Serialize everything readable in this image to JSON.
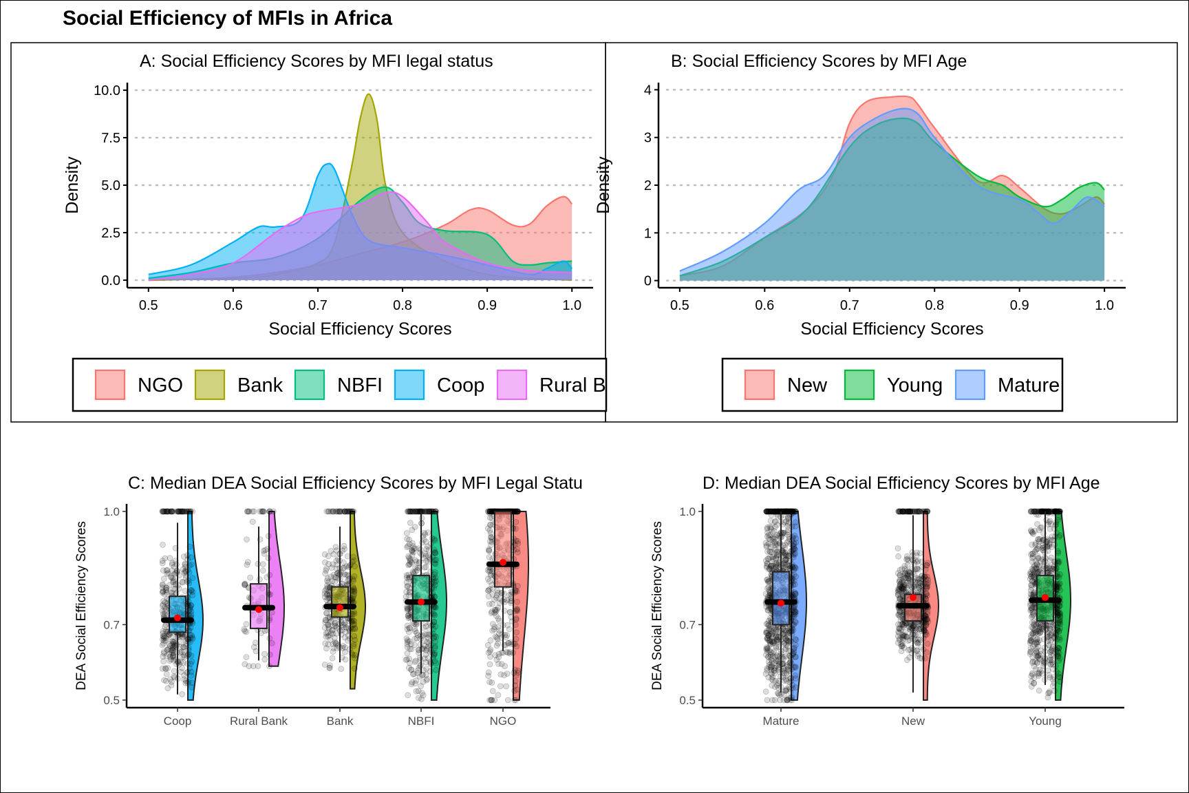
{
  "figure_title": "Social Efficiency of MFIs in Africa",
  "colors": {
    "NGO": "#F8766D",
    "Bank": "#A3A500",
    "NBFI": "#00BF7D",
    "Coop": "#00B0F6",
    "Rural Bank": "#E76BF3",
    "New": "#F8766D",
    "Young": "#00BA38",
    "Mature": "#619CFF",
    "mean_point": "#FF0000"
  },
  "chart_data": [
    {
      "id": "A",
      "type": "area",
      "title": "A: Social Efficiency Scores by MFI legal status",
      "xlabel": "Social Efficiency Scores",
      "ylabel": "Density",
      "xlim": [
        0.475,
        1.025
      ],
      "ylim": [
        -0.4,
        10.4
      ],
      "xticks": [
        0.5,
        0.6,
        0.7,
        0.8,
        0.9,
        1.0
      ],
      "xtick_labels": [
        "0.5",
        "0.6",
        "0.7",
        "0.8",
        "0.9",
        "1.0"
      ],
      "yticks": [
        0,
        2.5,
        5,
        7.5,
        10
      ],
      "ytick_labels": [
        "0.0",
        "2.5",
        "5.0",
        "7.5",
        "10.0"
      ],
      "grid": "horizontal dotted",
      "legend_position": "bottom",
      "legend": [
        "NGO",
        "Bank",
        "NBFI",
        "Coop",
        "Rural B"
      ],
      "series": [
        {
          "name": "NGO",
          "x": [
            0.5,
            0.55,
            0.6,
            0.65,
            0.7,
            0.75,
            0.8,
            0.85,
            0.88,
            0.9,
            0.93,
            0.95,
            0.97,
            0.99,
            1.0
          ],
          "y": [
            0.0,
            0.05,
            0.15,
            0.4,
            0.8,
            1.4,
            2.0,
            2.9,
            3.7,
            3.7,
            2.9,
            2.95,
            3.9,
            4.4,
            4.0
          ]
        },
        {
          "name": "Bank",
          "x": [
            0.5,
            0.6,
            0.65,
            0.7,
            0.72,
            0.74,
            0.75,
            0.76,
            0.77,
            0.78,
            0.8,
            0.85,
            0.9,
            0.95,
            1.0
          ],
          "y": [
            0.0,
            0.1,
            0.3,
            0.9,
            2.0,
            6.0,
            8.5,
            9.8,
            8.4,
            5.0,
            2.5,
            1.0,
            0.3,
            0.1,
            0.0
          ]
        },
        {
          "name": "NBFI",
          "x": [
            0.5,
            0.55,
            0.6,
            0.65,
            0.7,
            0.75,
            0.78,
            0.8,
            0.82,
            0.85,
            0.9,
            0.93,
            0.95,
            0.97,
            1.0
          ],
          "y": [
            0.1,
            0.4,
            0.9,
            1.2,
            2.2,
            4.2,
            4.9,
            4.1,
            3.0,
            2.6,
            2.4,
            1.0,
            0.8,
            0.9,
            1.0
          ]
        },
        {
          "name": "Coop",
          "x": [
            0.5,
            0.55,
            0.6,
            0.63,
            0.65,
            0.68,
            0.7,
            0.71,
            0.72,
            0.74,
            0.76,
            0.8,
            0.85,
            0.9,
            0.95,
            0.97,
            0.99,
            1.0
          ],
          "y": [
            0.3,
            0.8,
            2.0,
            2.8,
            2.8,
            3.2,
            5.5,
            6.1,
            5.8,
            3.5,
            2.1,
            1.7,
            1.3,
            0.8,
            0.3,
            0.6,
            1.0,
            0.6
          ]
        },
        {
          "name": "Rural Bank",
          "x": [
            0.5,
            0.55,
            0.6,
            0.65,
            0.68,
            0.7,
            0.75,
            0.78,
            0.8,
            0.83,
            0.85,
            0.9,
            0.95,
            1.0
          ],
          "y": [
            0.0,
            0.3,
            0.9,
            2.5,
            3.3,
            3.6,
            4.0,
            4.6,
            4.4,
            3.0,
            2.0,
            0.9,
            0.5,
            0.4
          ]
        }
      ]
    },
    {
      "id": "B",
      "type": "area",
      "title": "B: Social Efficiency Scores by MFI Age",
      "xlabel": "Social Efficiency Scores",
      "ylabel": "Density",
      "xlim": [
        0.475,
        1.025
      ],
      "ylim": [
        -0.15,
        4.15
      ],
      "xticks": [
        0.5,
        0.6,
        0.7,
        0.8,
        0.9,
        1.0
      ],
      "xtick_labels": [
        "0.5",
        "0.6",
        "0.7",
        "0.8",
        "0.9",
        "1.0"
      ],
      "yticks": [
        0,
        1,
        2,
        3,
        4
      ],
      "ytick_labels": [
        "0",
        "1",
        "2",
        "3",
        "4"
      ],
      "grid": "horizontal dotted",
      "legend_position": "bottom",
      "legend": [
        "New",
        "Young",
        "Mature"
      ],
      "series": [
        {
          "name": "New",
          "x": [
            0.5,
            0.55,
            0.6,
            0.65,
            0.68,
            0.7,
            0.72,
            0.75,
            0.77,
            0.78,
            0.8,
            0.85,
            0.88,
            0.9,
            0.93,
            0.95,
            0.97,
            0.99,
            1.0
          ],
          "y": [
            0.1,
            0.3,
            0.9,
            1.5,
            2.2,
            3.3,
            3.75,
            3.85,
            3.85,
            3.7,
            3.2,
            2.1,
            2.2,
            1.95,
            1.5,
            1.4,
            1.55,
            1.75,
            1.6
          ]
        },
        {
          "name": "Young",
          "x": [
            0.5,
            0.55,
            0.6,
            0.65,
            0.7,
            0.73,
            0.76,
            0.78,
            0.8,
            0.85,
            0.88,
            0.9,
            0.93,
            0.95,
            0.97,
            0.99,
            1.0
          ],
          "y": [
            0.1,
            0.4,
            0.9,
            1.5,
            2.8,
            3.25,
            3.4,
            3.3,
            2.9,
            2.2,
            2.0,
            1.75,
            1.55,
            1.7,
            1.95,
            2.05,
            1.9
          ]
        },
        {
          "name": "Mature",
          "x": [
            0.5,
            0.55,
            0.6,
            0.64,
            0.67,
            0.7,
            0.73,
            0.76,
            0.78,
            0.8,
            0.85,
            0.9,
            0.92,
            0.94,
            0.96,
            0.98,
            1.0
          ],
          "y": [
            0.2,
            0.6,
            1.2,
            1.9,
            2.2,
            3.0,
            3.4,
            3.6,
            3.5,
            3.0,
            2.0,
            1.7,
            1.45,
            1.2,
            1.45,
            1.75,
            1.55
          ]
        }
      ]
    },
    {
      "id": "C",
      "type": "raincloud",
      "title": "C: Median DEA Social Efficiency Scores by MFI Legal Statu",
      "xlabel": "",
      "ylabel": "DEA Social Efficiency Scores",
      "ylim": [
        0.48,
        1.02
      ],
      "yticks": [
        0.5,
        0.7,
        1.0
      ],
      "ytick_labels": [
        "0.5",
        "0.7",
        "1.0"
      ],
      "categories": [
        "Coop",
        "Rural Bank",
        "Bank",
        "NBFI",
        "NGO"
      ],
      "groups": [
        {
          "name": "Coop",
          "color_key": "Coop",
          "whisker_low": 0.515,
          "q1": 0.68,
          "median": 0.712,
          "q3": 0.775,
          "whisker_high": 0.97,
          "mean": 0.718,
          "min": 0.5,
          "max": 1.0,
          "n": 420
        },
        {
          "name": "Rural Bank",
          "color_key": "Rural Bank",
          "whisker_low": 0.605,
          "q1": 0.69,
          "median": 0.745,
          "q3": 0.808,
          "whisker_high": 0.96,
          "mean": 0.74,
          "min": 0.59,
          "max": 1.0,
          "n": 90
        },
        {
          "name": "Bank",
          "color_key": "Bank",
          "whisker_low": 0.6,
          "q1": 0.72,
          "median": 0.748,
          "q3": 0.8,
          "whisker_high": 0.96,
          "mean": 0.745,
          "min": 0.53,
          "max": 1.0,
          "n": 320
        },
        {
          "name": "NBFI",
          "color_key": "NBFI",
          "whisker_low": 0.57,
          "q1": 0.71,
          "median": 0.76,
          "q3": 0.83,
          "whisker_high": 1.0,
          "mean": 0.76,
          "min": 0.5,
          "max": 1.0,
          "n": 420
        },
        {
          "name": "NGO",
          "color_key": "NGO",
          "whisker_low": 0.63,
          "q1": 0.8,
          "median": 0.86,
          "q3": 1.0,
          "whisker_high": 1.0,
          "mean": 0.865,
          "min": 0.5,
          "max": 1.0,
          "n": 420
        }
      ]
    },
    {
      "id": "D",
      "type": "raincloud",
      "title": "D: Median DEA Social Efficiency Scores by MFI Age",
      "xlabel": "",
      "ylabel": "DEA Social Efficiency Scores",
      "ylim": [
        0.48,
        1.02
      ],
      "yticks": [
        0.5,
        0.7,
        1.0
      ],
      "ytick_labels": [
        "0.5",
        "0.7",
        "1.0"
      ],
      "categories": [
        "Mature",
        "New",
        "Young"
      ],
      "groups": [
        {
          "name": "Mature",
          "color_key": "Mature",
          "whisker_low": 0.52,
          "q1": 0.7,
          "median": 0.76,
          "q3": 0.84,
          "whisker_high": 1.0,
          "mean": 0.757,
          "min": 0.5,
          "max": 1.0,
          "n": 900
        },
        {
          "name": "New",
          "color_key": "New",
          "whisker_low": 0.52,
          "q1": 0.71,
          "median": 0.75,
          "q3": 0.78,
          "whisker_high": 0.99,
          "mean": 0.772,
          "min": 0.5,
          "max": 1.0,
          "n": 520
        },
        {
          "name": "Young",
          "color_key": "Young",
          "whisker_low": 0.54,
          "q1": 0.71,
          "median": 0.765,
          "q3": 0.83,
          "whisker_high": 1.0,
          "mean": 0.772,
          "min": 0.5,
          "max": 1.0,
          "n": 700
        }
      ]
    }
  ]
}
